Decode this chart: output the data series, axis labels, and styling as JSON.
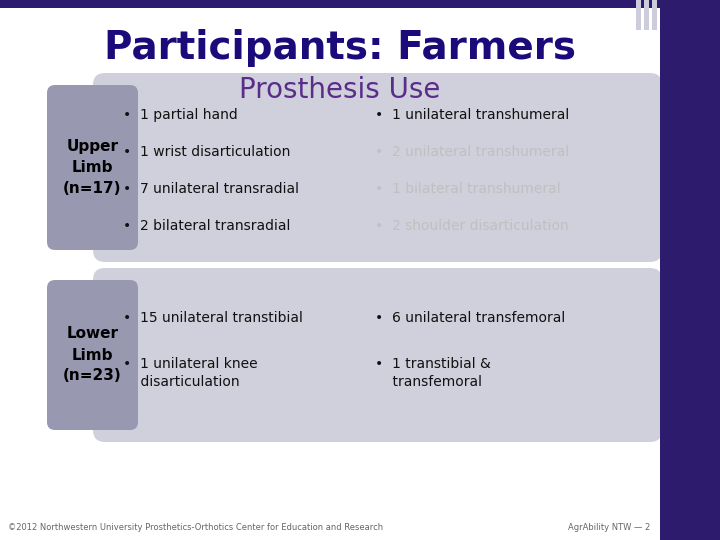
{
  "title_line1": "Participants: Farmers",
  "title_line2": "Prosthesis Use",
  "title_color": "#1a0a7a",
  "subtitle_color": "#5a2d8a",
  "bg_color": "#ffffff",
  "top_bar_color": "#2d1b6e",
  "label_box_color": "#9898b0",
  "main_box_color_light": "#d0d0dc",
  "main_box_color_dark": "#a8a8bc",
  "label_text_color": "#000000",
  "upper_label": "Upper\nLimb\n(n=17)",
  "lower_label": "Lower\nLimb\n(n=23)",
  "upper_left_bullets": [
    "1 partial hand",
    "1 wrist disarticulation",
    "7 unilateral transradial",
    "2 bilateral transradial"
  ],
  "upper_right_bullets": [
    "1 unilateral transhumeral",
    "2 unilateral transhumeral",
    "1 bilateral transhumeral",
    "2 shoulder disarticulation"
  ],
  "upper_right_dim": [
    false,
    true,
    true,
    true
  ],
  "lower_left_bullets": [
    "15 unilateral transtibial",
    "1 unilateral knee\n    disarticulation"
  ],
  "lower_right_bullets": [
    "6 unilateral transfemoral",
    "1 transtibial &\n    transfemoral"
  ],
  "footer_left": "©2012 Northwestern University Prosthetics-Orthotics Center for Education and Research",
  "footer_right": "AgrAbility NTW — 2",
  "footer_color": "#666666",
  "right_bar_color": "#2d1b6e",
  "stripe_color": "#ccccdd"
}
